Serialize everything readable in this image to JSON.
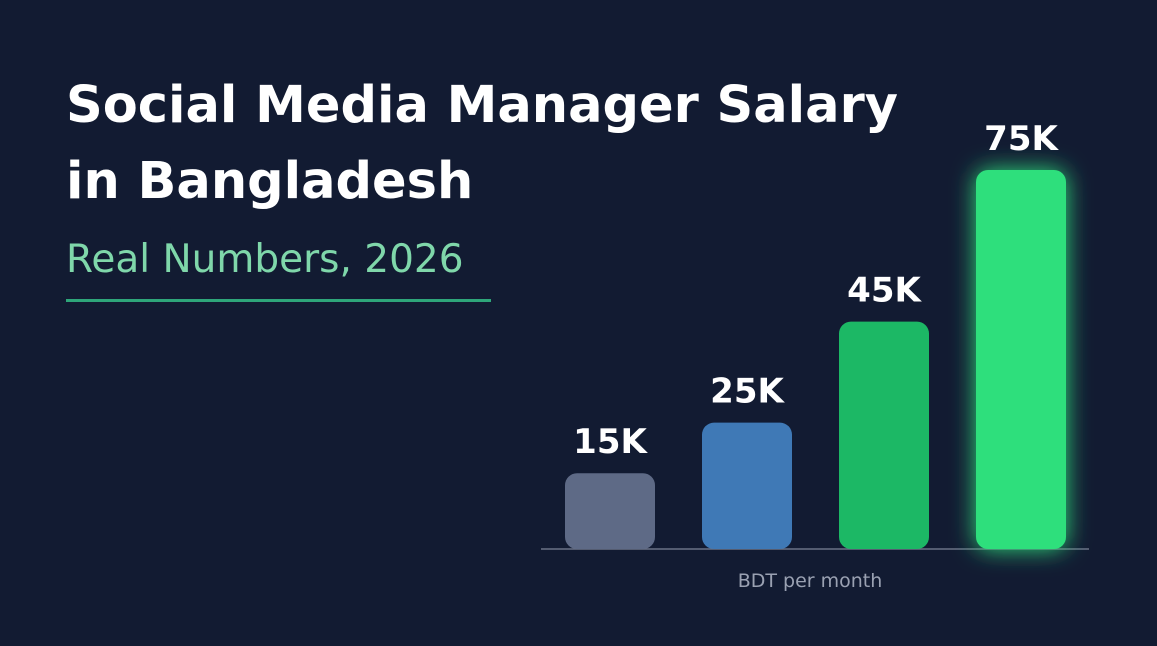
{
  "chart_data": {
    "type": "bar",
    "title": [
      "Social Media Manager Salary",
      "in Bangladesh"
    ],
    "subtitle": "Real Numbers, 2026",
    "x_label": "BDT per month",
    "categories": [
      null,
      null,
      null,
      null
    ],
    "values": [
      15,
      25,
      45,
      75
    ],
    "value_labels": [
      "15K",
      "25K",
      "45K",
      "75K"
    ],
    "colors": [
      "#5e6a86",
      "#3f79b6",
      "#1cb865",
      "#2ddf7b"
    ]
  }
}
